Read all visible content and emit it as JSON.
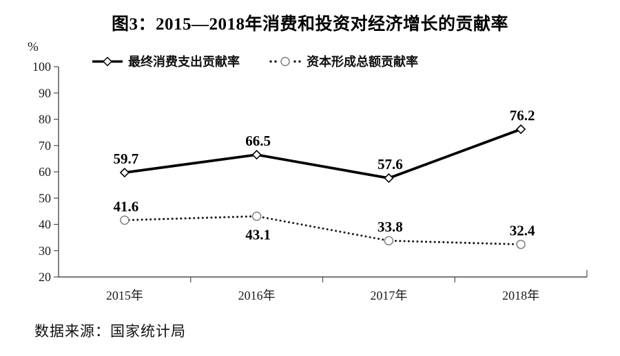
{
  "figure": {
    "source_note": "数据来源：国家统计局"
  },
  "chart_data": {
    "type": "line",
    "title": "图3：2015—2018年消费和投资对经济增长的贡献率",
    "categories": [
      "2015年",
      "2016年",
      "2017年",
      "2018年"
    ],
    "series": [
      {
        "name": "最终消费支出贡献率",
        "values": [
          59.7,
          66.5,
          57.6,
          76.2
        ],
        "line_style": "solid",
        "marker": "diamond",
        "color": "#000000",
        "label_side": [
          "above",
          "above",
          "above",
          "above"
        ]
      },
      {
        "name": "资本形成总额贡献率",
        "values": [
          41.6,
          43.1,
          33.8,
          32.4
        ],
        "line_style": "dotted",
        "marker": "circle",
        "color": "#1a1a1a",
        "label_side": [
          "above",
          "below",
          "above",
          "above"
        ]
      }
    ],
    "ylabel": "%",
    "ylim": [
      20,
      100
    ],
    "yticks": [
      20,
      30,
      40,
      50,
      60,
      70,
      80,
      90,
      100
    ],
    "grid": false,
    "legend_position": "top",
    "axis_color": "#4d4d4d"
  }
}
